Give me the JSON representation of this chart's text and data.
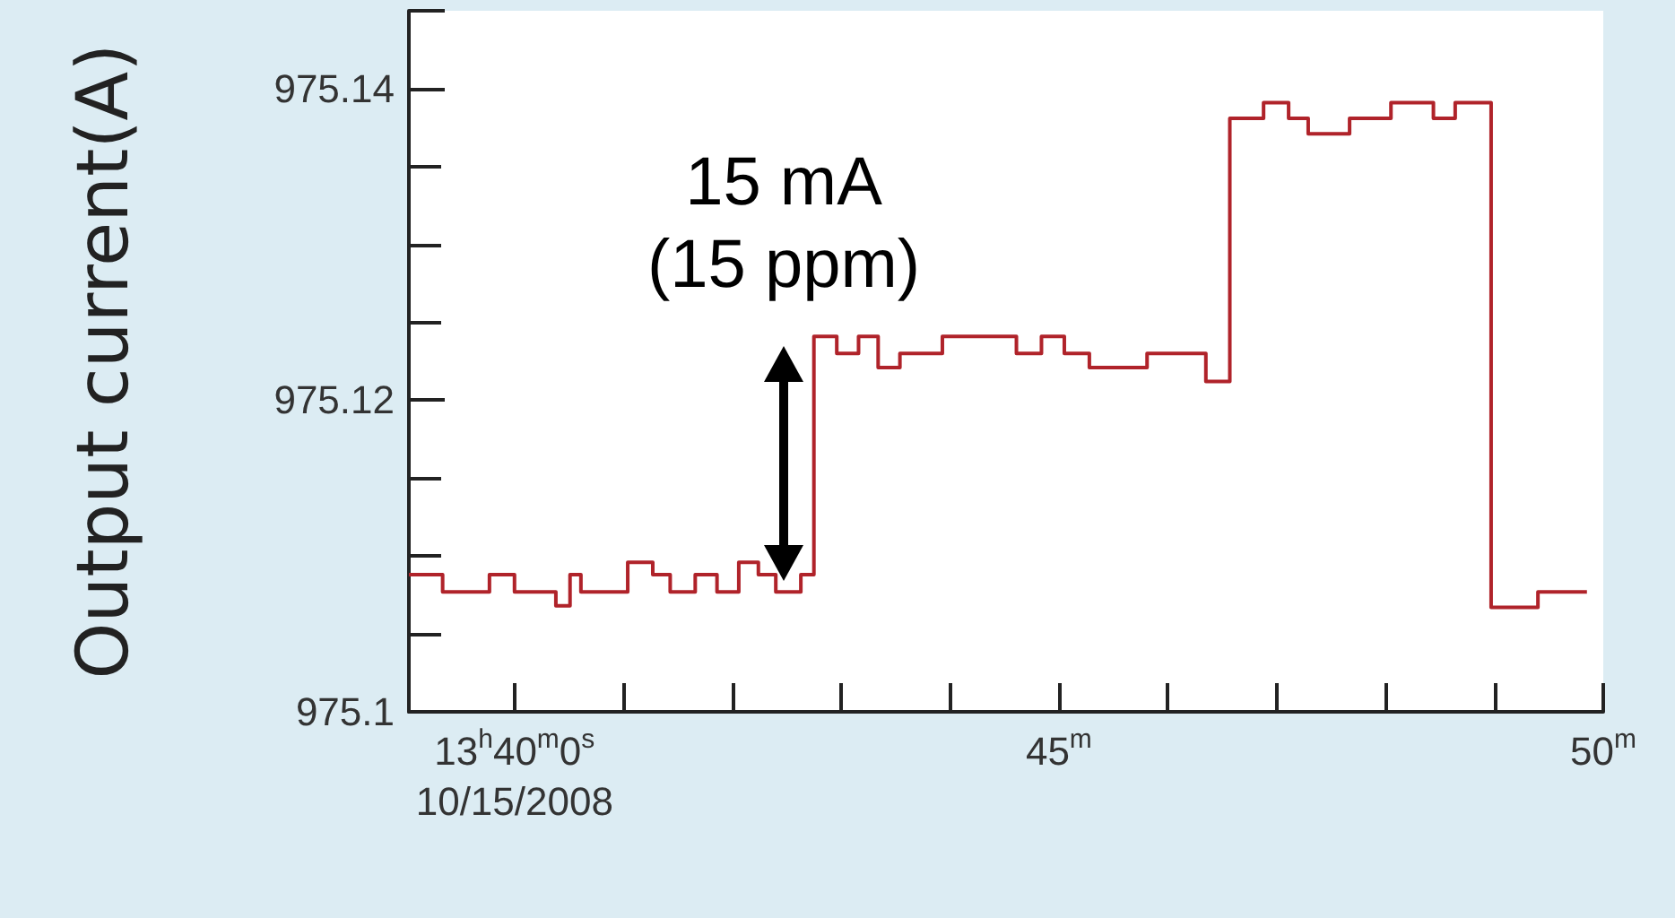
{
  "chart_data": {
    "type": "step",
    "ylabel": "Output current(A)",
    "x": [
      39.03,
      39.34,
      39.77,
      40.0,
      40.38,
      40.51,
      40.61,
      41.04,
      41.27,
      41.43,
      41.66,
      41.86,
      42.06,
      42.24,
      42.4,
      42.63,
      42.75,
      42.96,
      43.16,
      43.34,
      43.54,
      43.93,
      44.61,
      44.84,
      45.05,
      45.28,
      45.81,
      46.35,
      46.57,
      46.88,
      47.11,
      47.29,
      47.67,
      48.05,
      48.44,
      48.64,
      48.97,
      49.4,
      49.85
    ],
    "series": [
      {
        "color": "#b0232a",
        "values": [
          975.1088,
          975.1077,
          975.1088,
          975.1077,
          975.1068,
          975.1088,
          975.1077,
          975.1096,
          975.1088,
          975.1077,
          975.1088,
          975.1077,
          975.1096,
          975.1088,
          975.1077,
          975.1088,
          975.1241,
          975.123,
          975.1241,
          975.1221,
          975.123,
          975.1241,
          975.123,
          975.1241,
          975.123,
          975.1221,
          975.123,
          975.1212,
          975.1381,
          975.1391,
          975.1381,
          975.1371,
          975.1381,
          975.1391,
          975.1381,
          975.1391,
          975.1067,
          975.1077,
          975.1077
        ]
      }
    ],
    "xlim": [
      39.03,
      50
    ],
    "xticks": [
      {
        "value": 40,
        "label": "13$^{h}$40$^{m}$0$^{s}$\n10/15/2008"
      },
      {
        "value": 41,
        "label": null
      },
      {
        "value": 42,
        "label": null
      },
      {
        "value": 43,
        "label": null
      },
      {
        "value": 44,
        "label": null
      },
      {
        "value": 45,
        "label": "45$^{m}$"
      },
      {
        "value": 46,
        "label": null
      },
      {
        "value": 47,
        "label": null
      },
      {
        "value": 48,
        "label": null
      },
      {
        "value": 49,
        "label": null
      },
      {
        "value": 50,
        "label": "50$^{m}$"
      }
    ],
    "ylim": [
      975.1,
      975.145
    ],
    "yticks": [
      975.1,
      975.12,
      975.14
    ],
    "annotations": [
      "15 mA\n(15 ppm)"
    ],
    "grid": false,
    "marker": "none",
    "line_style": "solid"
  }
}
